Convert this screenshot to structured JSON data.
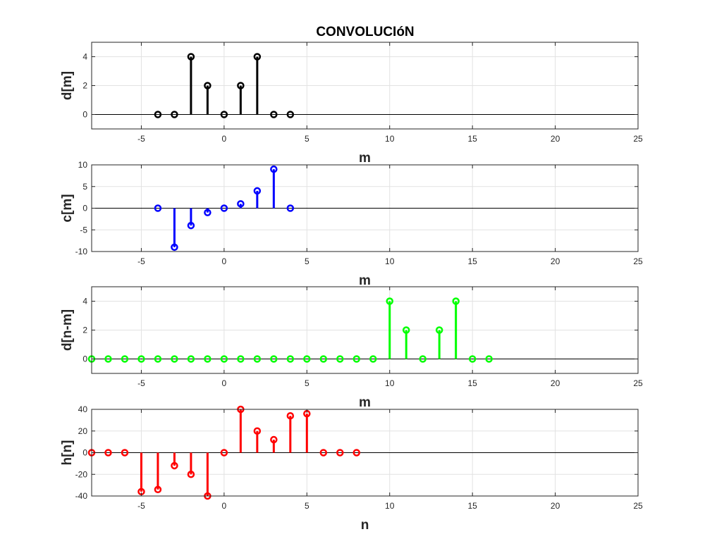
{
  "title": "CONVOLUCIóN",
  "chart_data": [
    {
      "type": "stem",
      "xlabel": "m",
      "ylabel": "d[m]",
      "color": "#000000",
      "xlim": [
        -8,
        25
      ],
      "ylim": [
        -1,
        5
      ],
      "xticks": [
        -5,
        0,
        5,
        10,
        15,
        20,
        25
      ],
      "yticks": [
        0,
        2,
        4
      ],
      "x": [
        -4,
        -3,
        -2,
        -1,
        0,
        1,
        2,
        3,
        4
      ],
      "y": [
        0,
        0,
        4,
        2,
        0,
        2,
        4,
        0,
        0
      ]
    },
    {
      "type": "stem",
      "xlabel": "m",
      "ylabel": "c[m]",
      "color": "#0000ff",
      "xlim": [
        -8,
        25
      ],
      "ylim": [
        -10,
        10
      ],
      "xticks": [
        -5,
        0,
        5,
        10,
        15,
        20,
        25
      ],
      "yticks": [
        -10,
        -5,
        0,
        5,
        10
      ],
      "x": [
        -4,
        -3,
        -2,
        -1,
        0,
        1,
        2,
        3,
        4
      ],
      "y": [
        0,
        -9,
        -4,
        -1,
        0,
        1,
        4,
        9,
        0
      ]
    },
    {
      "type": "stem",
      "xlabel": "m",
      "ylabel": "d[n-m]",
      "color": "#00ff00",
      "xlim": [
        -8,
        25
      ],
      "ylim": [
        -1,
        5
      ],
      "xticks": [
        -5,
        0,
        5,
        10,
        15,
        20,
        25
      ],
      "yticks": [
        0,
        2,
        4
      ],
      "x": [
        -8,
        -7,
        -6,
        -5,
        -4,
        -3,
        -2,
        -1,
        0,
        1,
        2,
        3,
        4,
        5,
        6,
        7,
        8,
        9,
        10,
        11,
        12,
        13,
        14,
        15,
        16
      ],
      "y": [
        0,
        0,
        0,
        0,
        0,
        0,
        0,
        0,
        0,
        0,
        0,
        0,
        0,
        0,
        0,
        0,
        0,
        0,
        4,
        2,
        0,
        2,
        4,
        0,
        0
      ]
    },
    {
      "type": "stem",
      "xlabel": "n",
      "ylabel": "h[n]",
      "color": "#ff0000",
      "xlim": [
        -8,
        25
      ],
      "ylim": [
        -40,
        40
      ],
      "xticks": [
        -5,
        0,
        5,
        10,
        15,
        20,
        25
      ],
      "yticks": [
        -40,
        -20,
        0,
        20,
        40
      ],
      "x": [
        -8,
        -7,
        -6,
        -5,
        -4,
        -3,
        -2,
        -1,
        0,
        1,
        2,
        3,
        4,
        5,
        6,
        7,
        8
      ],
      "y": [
        0,
        0,
        0,
        -36,
        -34,
        -12,
        -20,
        -40,
        0,
        40,
        20,
        12,
        34,
        36,
        0,
        0,
        0
      ]
    }
  ]
}
